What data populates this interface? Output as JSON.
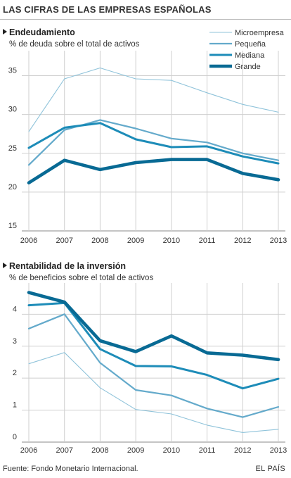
{
  "header": {
    "title": "LAS CIFRAS DE LAS EMPRESAS ESPAÑOLAS"
  },
  "footer": {
    "source": "Fuente: Fondo Monetario Internacional.",
    "brand": "EL PAÍS"
  },
  "colors": {
    "microempresa": "#8fc3da",
    "pequena": "#64aacb",
    "mediana": "#1d8cb8",
    "grande": "#086a94",
    "grid": "#cfcfcf",
    "axis": "#888888"
  },
  "legend": [
    {
      "key": "microempresa",
      "label": "Microempresa"
    },
    {
      "key": "pequena",
      "label": "Pequeña"
    },
    {
      "key": "mediana",
      "label": "Mediana"
    },
    {
      "key": "grande",
      "label": "Grande"
    }
  ],
  "chart_data": [
    {
      "type": "line",
      "title": "Endeudamiento",
      "subtitle": "% de deuda sobre el total de activos",
      "x": [
        "2006",
        "2007",
        "2008",
        "2009",
        "2010",
        "2011",
        "2012",
        "2013"
      ],
      "yticks": [
        15,
        20,
        25,
        30,
        35
      ],
      "ylim": [
        15,
        37.5
      ],
      "grid": true,
      "legend_position": "top-right",
      "series": [
        {
          "key": "microempresa",
          "name": "Microempresa",
          "values": [
            27.8,
            34.6,
            36.0,
            34.6,
            34.4,
            32.8,
            31.3,
            30.3
          ]
        },
        {
          "key": "pequena",
          "name": "Pequeña",
          "values": [
            23.5,
            28.0,
            29.3,
            28.2,
            26.9,
            26.4,
            25.0,
            24.1
          ]
        },
        {
          "key": "mediana",
          "name": "Mediana",
          "values": [
            25.7,
            28.3,
            28.9,
            26.8,
            25.8,
            25.9,
            24.6,
            23.7
          ]
        },
        {
          "key": "grande",
          "name": "Grande",
          "values": [
            21.2,
            24.1,
            22.9,
            23.8,
            24.2,
            24.2,
            22.4,
            21.6
          ]
        }
      ]
    },
    {
      "type": "line",
      "title": "Rentabilidad de la inversión",
      "subtitle": "% de beneficios sobre el total de activos",
      "x": [
        "2006",
        "2007",
        "2008",
        "2009",
        "2010",
        "2011",
        "2012",
        "2013"
      ],
      "yticks": [
        0,
        1,
        2,
        3,
        4
      ],
      "ylim": [
        0,
        4.8
      ],
      "grid": true,
      "series": [
        {
          "key": "microempresa",
          "name": "Microempresa",
          "values": [
            2.45,
            2.8,
            1.7,
            1.02,
            0.88,
            0.53,
            0.3,
            0.4
          ]
        },
        {
          "key": "pequena",
          "name": "Pequeña",
          "values": [
            3.55,
            4.0,
            2.48,
            1.63,
            1.46,
            1.05,
            0.78,
            1.1
          ]
        },
        {
          "key": "mediana",
          "name": "Mediana",
          "values": [
            4.28,
            4.35,
            2.91,
            2.38,
            2.37,
            2.1,
            1.68,
            1.98
          ]
        },
        {
          "key": "grande",
          "name": "Grande",
          "values": [
            4.68,
            4.38,
            3.17,
            2.83,
            3.32,
            2.79,
            2.72,
            2.58
          ]
        }
      ]
    }
  ]
}
